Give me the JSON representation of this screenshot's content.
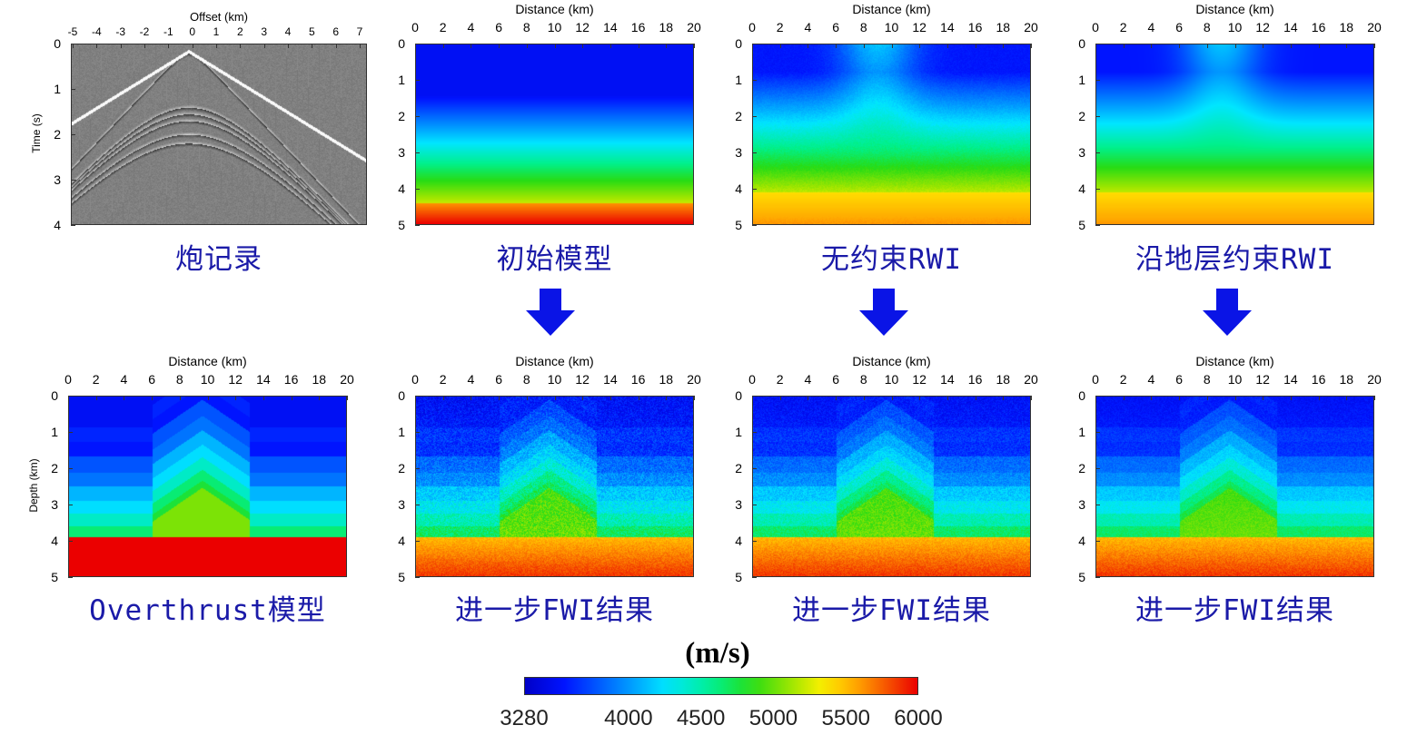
{
  "panels": [
    {
      "id": "shot",
      "type": "seismic",
      "xlabel": "Offset (km)",
      "ylabel": "Time (s)",
      "xticks": [
        "-5",
        "-4",
        "-3",
        "-2",
        "-1",
        "0",
        "1",
        "2",
        "3",
        "4",
        "5",
        "6",
        "7"
      ],
      "yticks": [
        "0",
        "1",
        "2",
        "3",
        "4"
      ],
      "caption": "炮记录"
    },
    {
      "id": "initial",
      "type": "gradient",
      "xlabel": "Distance (km)",
      "ylabel": "",
      "xticks": [
        "0",
        "2",
        "4",
        "6",
        "8",
        "10",
        "12",
        "14",
        "16",
        "18",
        "20"
      ],
      "yticks": [
        "0",
        "1",
        "2",
        "3",
        "4",
        "5"
      ],
      "caption": "初始模型"
    },
    {
      "id": "rwi",
      "type": "rwi",
      "xlabel": "Distance (km)",
      "ylabel": "",
      "xticks": [
        "0",
        "2",
        "4",
        "6",
        "8",
        "10",
        "12",
        "14",
        "16",
        "18",
        "20"
      ],
      "yticks": [
        "0",
        "1",
        "2",
        "3",
        "4",
        "5"
      ],
      "caption": "无约束RWI"
    },
    {
      "id": "rwi-constrained",
      "type": "rwi-smooth",
      "xlabel": "Distance (km)",
      "ylabel": "",
      "xticks": [
        "0",
        "2",
        "4",
        "6",
        "8",
        "10",
        "12",
        "14",
        "16",
        "18",
        "20"
      ],
      "yticks": [
        "0",
        "1",
        "2",
        "3",
        "4",
        "5"
      ],
      "caption": "沿地层约束RWI"
    },
    {
      "id": "overthrust",
      "type": "true-model",
      "xlabel": "Distance (km)",
      "ylabel": "Depth (km)",
      "xticks": [
        "0",
        "2",
        "4",
        "6",
        "8",
        "10",
        "12",
        "14",
        "16",
        "18",
        "20"
      ],
      "yticks": [
        "0",
        "1",
        "2",
        "3",
        "4",
        "5"
      ],
      "caption": "Overthrust模型"
    },
    {
      "id": "fwi-initial",
      "type": "fwi-poor",
      "xlabel": "Distance (km)",
      "ylabel": "",
      "xticks": [
        "0",
        "2",
        "4",
        "6",
        "8",
        "10",
        "12",
        "14",
        "16",
        "18",
        "20"
      ],
      "yticks": [
        "0",
        "1",
        "2",
        "3",
        "4",
        "5"
      ],
      "caption": "进一步FWI结果"
    },
    {
      "id": "fwi-rwi",
      "type": "fwi-mid",
      "xlabel": "Distance (km)",
      "ylabel": "",
      "xticks": [
        "0",
        "2",
        "4",
        "6",
        "8",
        "10",
        "12",
        "14",
        "16",
        "18",
        "20"
      ],
      "yticks": [
        "0",
        "1",
        "2",
        "3",
        "4",
        "5"
      ],
      "caption": "进一步FWI结果"
    },
    {
      "id": "fwi-constrained",
      "type": "fwi-good",
      "xlabel": "Distance (km)",
      "ylabel": "",
      "xticks": [
        "0",
        "2",
        "4",
        "6",
        "8",
        "10",
        "12",
        "14",
        "16",
        "18",
        "20"
      ],
      "yticks": [
        "0",
        "1",
        "2",
        "3",
        "4",
        "5"
      ],
      "caption": "进一步FWI结果"
    }
  ],
  "colorbar": {
    "unit": "(m/s)",
    "min": 3280,
    "max": 6000,
    "ticks": [
      "3280",
      "4000",
      "4500",
      "5000",
      "5500",
      "6000"
    ],
    "tick_values": [
      3280,
      4000,
      4500,
      5000,
      5500,
      6000
    ]
  },
  "colors": {
    "caption": "#1a1aa8",
    "arrow": "#0a14e6"
  }
}
